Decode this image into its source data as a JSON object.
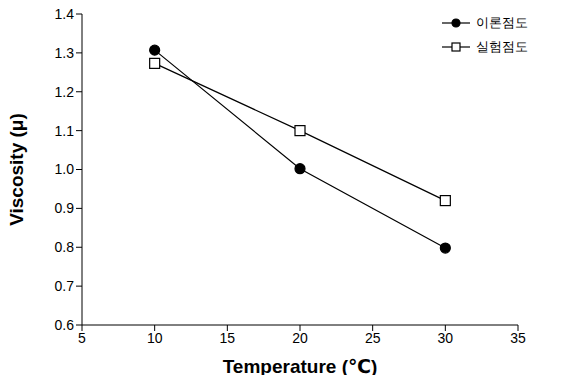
{
  "chart_data": {
    "type": "line",
    "x_label": "Temperature (℃)",
    "y_label": "Viscosity (μ)",
    "xlim": [
      5,
      35
    ],
    "xticks": [
      5,
      10,
      15,
      20,
      25,
      30,
      35
    ],
    "ylim": [
      0.6,
      1.4
    ],
    "yticks": [
      0.6,
      0.7,
      0.8,
      0.9,
      {
        "value": 1,
        "label": "1.0"
      },
      1.1,
      1.2,
      1.3,
      1.4
    ],
    "grid": false,
    "legend": "upper right",
    "series": [
      {
        "name": "이론점도",
        "color": "#000000",
        "marker": "filled_circle",
        "line_style": "solid",
        "x": [
          10,
          20,
          30
        ],
        "values": [
          1.307,
          1.002,
          0.798
        ]
      },
      {
        "name": "실험점도",
        "color": "#000000",
        "marker": "open_square",
        "line_style": "solid",
        "x": [
          10,
          20,
          30
        ],
        "values": [
          1.273,
          1.1,
          0.92
        ]
      }
    ]
  }
}
